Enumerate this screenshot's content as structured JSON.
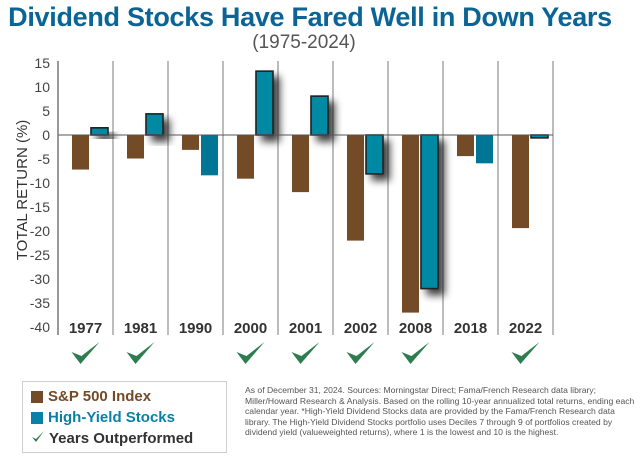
{
  "header": {
    "title": "Dividend Stocks Have Fared Well in Down Years",
    "subtitle": "(1975-2024)"
  },
  "chart_data": {
    "type": "bar",
    "title": "Dividend Stocks Have Fared Well in Down Years",
    "subtitle": "(1975-2024)",
    "xlabel": "",
    "ylabel": "TOTAL RETURN (%)",
    "ylim": [
      -40,
      15
    ],
    "yticks": [
      15,
      10,
      5,
      0,
      -5,
      -10,
      -15,
      -20,
      -25,
      -30,
      -35,
      -40
    ],
    "ytick_labels": [
      "15",
      "10",
      "5",
      "0",
      "-5",
      "-10",
      "-15",
      "-20",
      "-25",
      "-30",
      "-35",
      "-40"
    ],
    "categories": [
      "1977",
      "1981",
      "1990",
      "2000",
      "2001",
      "2002",
      "2008",
      "2018",
      "2022"
    ],
    "series": [
      {
        "name": "S&P 500 Index",
        "color": "#734b26",
        "values": [
          -7.2,
          -4.9,
          -3.1,
          -9.1,
          -11.9,
          -22.0,
          -37.0,
          -4.4,
          -19.4
        ]
      },
      {
        "name": "High-Yield Stocks",
        "color": "#0089a3",
        "values": [
          1.5,
          4.4,
          -8.4,
          13.3,
          8.1,
          -8.1,
          -32.0,
          -5.9,
          -0.6
        ]
      }
    ],
    "outperformed": [
      true,
      true,
      false,
      true,
      true,
      true,
      true,
      false,
      true
    ],
    "legend": [
      {
        "label": "S&P 500 Index",
        "color": "#734b26",
        "marker": "square"
      },
      {
        "label": "High-Yield Stocks",
        "color": "#0a7fa8",
        "marker": "square"
      },
      {
        "label": "Years Outperformed",
        "color": "#2e7d4f",
        "marker": "check"
      }
    ],
    "legend_position": "bottom-left",
    "grid": false
  },
  "colors": {
    "title": "#0a6496",
    "sp500": "#734b26",
    "high_yield": "#0089a3",
    "high_yield_plain": "#007595",
    "check": "#2e7d4f",
    "legend_sp500_text": "#734b26",
    "legend_hy_text": "#0a7fa8",
    "legend_check_text": "#333333"
  },
  "footnote": "As of December 31, 2024. Sources: Morningstar Direct; Fama/French Research data library; Miller/Howard Research & Analysis. Based on the rolling 10-year annualized total returns, ending each calendar year. *High-Yield Dividend Stocks data are provided by the Fama/French Research data library. The High-Yield Dividend Stocks portfolio uses Deciles 7 through 9 of portfolios created by dividend yield (valueweighted returns), where 1 is the lowest and 10 is the highest."
}
